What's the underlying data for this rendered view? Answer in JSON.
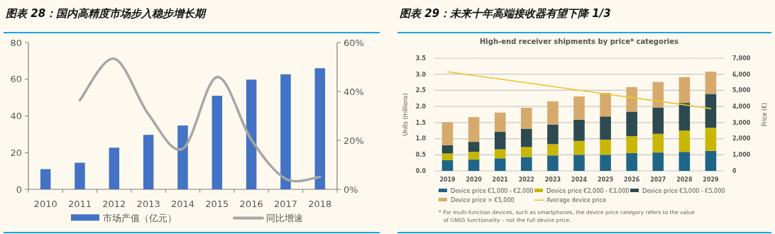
{
  "chart_data": [
    {
      "type": "bar",
      "title": "图表 28：国内高精度市场步入稳步增长期",
      "categories": [
        "2010",
        "2011",
        "2012",
        "2013",
        "2014",
        "2015",
        "2016",
        "2017",
        "2018"
      ],
      "series": [
        {
          "name": "市场产值（亿元）",
          "color": "#4472c4",
          "values": [
            11,
            14.5,
            22.7,
            29.7,
            34.8,
            51,
            59.8,
            62.7,
            66
          ]
        },
        {
          "name": "同比增速",
          "type": "line",
          "axis": "y2",
          "color": "#a6a6a6",
          "values": [
            null,
            36.4,
            53.4,
            30.7,
            16.6,
            45.9,
            20.3,
            4.3,
            5.1
          ]
        }
      ],
      "ylim": [
        0,
        80
      ],
      "yticks": [
        0,
        20,
        40,
        60,
        80
      ],
      "y2lim": [
        0,
        60
      ],
      "y2ticks": [
        {
          "value": 0,
          "label": "0%"
        },
        {
          "value": 20,
          "label": "20%"
        },
        {
          "value": 40,
          "label": "40%"
        },
        {
          "value": 60,
          "label": "60%"
        }
      ],
      "legend": "bottom",
      "grid": false
    },
    {
      "type": "bar",
      "stacked": true,
      "title": "图表 29：未来十年高端接收器有望下降 1/3",
      "subtitle": "High-end receiver shipments by price* categories",
      "ylabel": "Units (millions)",
      "y2label": "Price (€)",
      "categories": [
        "2019",
        "2020",
        "2021",
        "2022",
        "2023",
        "2024",
        "2025",
        "2026",
        "2027",
        "2028",
        "2029"
      ],
      "series": [
        {
          "name": "Device price €1,000 - €2,000",
          "color": "#1f6587",
          "values": [
            0.33,
            0.35,
            0.39,
            0.43,
            0.48,
            0.5,
            0.5,
            0.55,
            0.57,
            0.59,
            0.62
          ]
        },
        {
          "name": "Device price €2,000 - €3,000",
          "color": "#c9b708",
          "values": [
            0.21,
            0.24,
            0.28,
            0.31,
            0.35,
            0.43,
            0.47,
            0.53,
            0.58,
            0.66,
            0.72
          ]
        },
        {
          "name": "Device price €3,000 - €5,000",
          "color": "#2c4a50",
          "values": [
            0.26,
            0.31,
            0.54,
            0.57,
            0.61,
            0.66,
            0.72,
            0.76,
            0.82,
            0.86,
            1.05
          ]
        },
        {
          "name": "Device price > €5,000",
          "color": "#d6aa6c",
          "values": [
            0.71,
            0.77,
            0.6,
            0.65,
            0.72,
            0.72,
            0.73,
            0.76,
            0.79,
            0.8,
            0.69
          ]
        },
        {
          "name": "Average device price",
          "type": "line",
          "axis": "y2",
          "color": "#ecc52e",
          "values": [
            6150,
            5920,
            5700,
            5470,
            5240,
            5010,
            4780,
            4550,
            4330,
            4100,
            3870
          ]
        }
      ],
      "ylim": [
        0,
        3.5
      ],
      "yticks": [
        {
          "value": 0,
          "label": "0.0"
        },
        0.5,
        {
          "value": 1,
          "label": "1.0"
        },
        1.5,
        {
          "value": 2,
          "label": "2.0"
        },
        2.5,
        {
          "value": 3,
          "label": "3.0"
        },
        3.5
      ],
      "y2lim": [
        0,
        7000
      ],
      "y2ticks": [
        0,
        {
          "value": 1000,
          "label": "1,000"
        },
        {
          "value": 2000,
          "label": "2,000"
        },
        {
          "value": 3000,
          "label": "3,000"
        },
        {
          "value": 4000,
          "label": "4,000"
        },
        {
          "value": 5000,
          "label": "5,000"
        },
        {
          "value": 6000,
          "label": "6,000"
        },
        {
          "value": 7000,
          "label": "7,000"
        }
      ],
      "grid": "y",
      "legend": "bottom",
      "annotations": [
        "* For multi-function devices, such as smartphones, the device price category refers to the value of GNSS functionality – not the full device price."
      ]
    }
  ]
}
